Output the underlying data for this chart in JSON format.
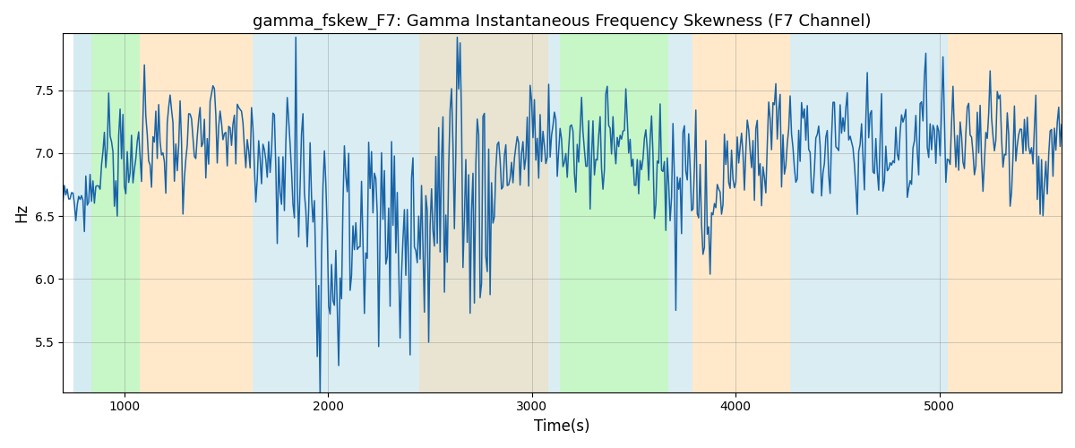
{
  "title": "gamma_fskew_F7: Gamma Instantaneous Frequency Skewness (F7 Channel)",
  "xlabel": "Time(s)",
  "ylabel": "Hz",
  "xlim": [
    700,
    5600
  ],
  "ylim": [
    5.1,
    7.95
  ],
  "yticks": [
    5.5,
    6.0,
    6.5,
    7.0,
    7.5
  ],
  "xticks": [
    1000,
    2000,
    3000,
    4000,
    5000
  ],
  "line_color": "#1864a8",
  "line_width": 1.1,
  "background_regions": [
    {
      "xmin": 750,
      "xmax": 840,
      "color": "#add8e6",
      "alpha": 0.5
    },
    {
      "xmin": 840,
      "xmax": 1075,
      "color": "#90ee90",
      "alpha": 0.5
    },
    {
      "xmin": 1075,
      "xmax": 1630,
      "color": "#ffd7a0",
      "alpha": 0.55
    },
    {
      "xmin": 1630,
      "xmax": 3080,
      "color": "#add8e6",
      "alpha": 0.45
    },
    {
      "xmin": 2450,
      "xmax": 3080,
      "color": "#ffd7a0",
      "alpha": 0.4
    },
    {
      "xmin": 3080,
      "xmax": 3140,
      "color": "#add8e6",
      "alpha": 0.45
    },
    {
      "xmin": 3140,
      "xmax": 3670,
      "color": "#90ee90",
      "alpha": 0.5
    },
    {
      "xmin": 3670,
      "xmax": 3790,
      "color": "#add8e6",
      "alpha": 0.45
    },
    {
      "xmin": 3790,
      "xmax": 4270,
      "color": "#ffd7a0",
      "alpha": 0.55
    },
    {
      "xmin": 4270,
      "xmax": 5040,
      "color": "#add8e6",
      "alpha": 0.45
    },
    {
      "xmin": 5040,
      "xmax": 5600,
      "color": "#ffd7a0",
      "alpha": 0.55
    }
  ],
  "figsize": [
    12.0,
    5.0
  ],
  "dpi": 100,
  "seed": 42,
  "n_points": 700
}
